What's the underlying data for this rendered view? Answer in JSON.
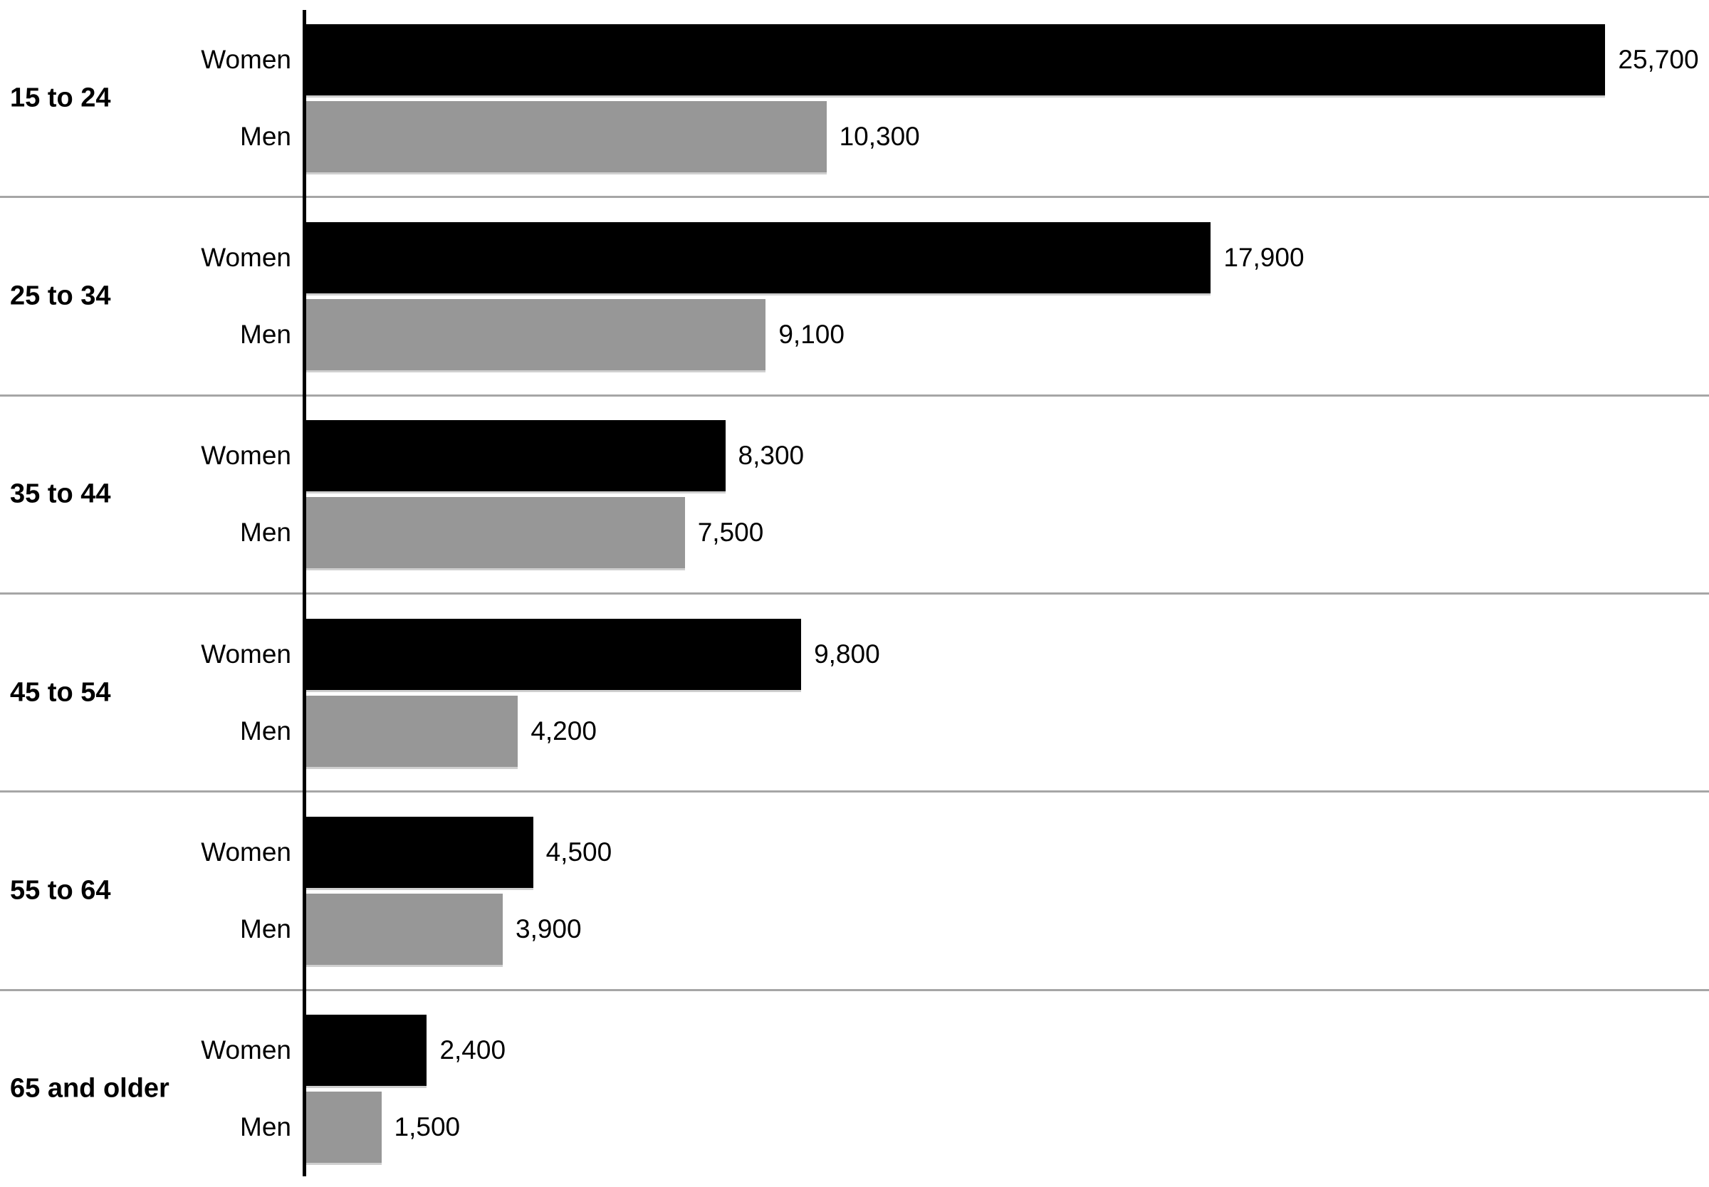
{
  "chart_data": {
    "type": "bar",
    "orientation": "horizontal",
    "title": "",
    "xlabel": "",
    "ylabel": "",
    "xmax": 27750,
    "grid": "horizontal separators between age groups",
    "legend_position": "none (series labeled per-bar)",
    "categories": [
      "15 to 24",
      "25 to 34",
      "35 to 44",
      "45 to 54",
      "55 to 64",
      "65 and older"
    ],
    "series": [
      {
        "name": "Women",
        "color": "#000000",
        "values": [
          25700,
          17900,
          8300,
          9800,
          4500,
          2400
        ],
        "labels": [
          "25,700",
          "17,900",
          "8,300",
          "9,800",
          "4,500",
          "2,400"
        ]
      },
      {
        "name": "Men",
        "color": "#979797",
        "values": [
          10300,
          9100,
          7500,
          4200,
          3900,
          1500
        ],
        "labels": [
          "10,300",
          "9,100",
          "7,500",
          "4,200",
          "3,900",
          "1,500"
        ]
      }
    ],
    "colors": {
      "women_bar": "#000000",
      "men_bar": "#979797",
      "separator_line": "#a6a6a6",
      "axis_line": "#000000",
      "text": "#000000",
      "background": "#ffffff"
    }
  }
}
